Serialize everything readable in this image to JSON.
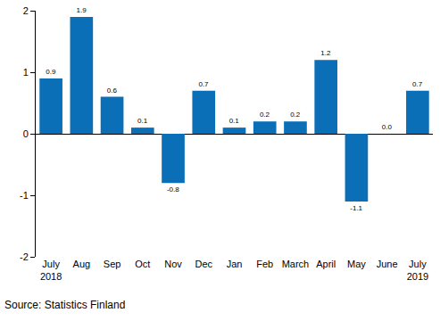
{
  "chart_data": {
    "type": "bar",
    "categories": [
      "July\n2018",
      "Aug",
      "Sep",
      "Oct",
      "Nov",
      "Dec",
      "Jan",
      "Feb",
      "March",
      "April",
      "May",
      "June",
      "July\n2019"
    ],
    "values": [
      0.9,
      1.9,
      0.6,
      0.1,
      -0.8,
      0.7,
      0.1,
      0.2,
      0.2,
      1.2,
      -1.1,
      0.0,
      0.7
    ],
    "value_labels": [
      "0.9",
      "1.9",
      "0.6",
      "0.1",
      "-0.8",
      "0.7",
      "0.1",
      "0.2",
      "0.2",
      "1.2",
      "-1.1",
      "0.0",
      "0.7"
    ],
    "data_labels": true,
    "color": "#0b6fb8",
    "ylim": [
      -2,
      2
    ],
    "yticks": [
      -2,
      -1,
      0,
      1,
      2
    ],
    "grid": false,
    "annotations": [
      "Source: Statistics Finland"
    ]
  }
}
